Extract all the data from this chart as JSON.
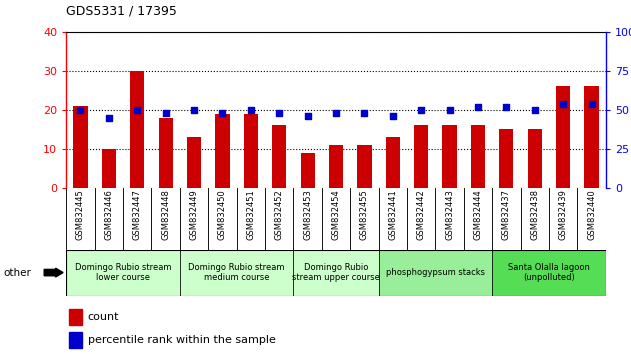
{
  "title": "GDS5331 / 17395",
  "categories": [
    "GSM832445",
    "GSM832446",
    "GSM832447",
    "GSM832448",
    "GSM832449",
    "GSM832450",
    "GSM832451",
    "GSM832452",
    "GSM832453",
    "GSM832454",
    "GSM832455",
    "GSM832441",
    "GSM832442",
    "GSM832443",
    "GSM832444",
    "GSM832437",
    "GSM832438",
    "GSM832439",
    "GSM832440"
  ],
  "counts": [
    21,
    10,
    30,
    18,
    13,
    19,
    19,
    16,
    9,
    11,
    11,
    13,
    16,
    16,
    16,
    15,
    15,
    26,
    26
  ],
  "percentiles": [
    50,
    45,
    50,
    48,
    50,
    48,
    50,
    48,
    46,
    48,
    48,
    46,
    50,
    50,
    52,
    52,
    50,
    54,
    54
  ],
  "bar_color": "#CC0000",
  "dot_color": "#0000CC",
  "ylim_left": [
    0,
    40
  ],
  "ylim_right": [
    0,
    100
  ],
  "yticks_left": [
    0,
    10,
    20,
    30,
    40
  ],
  "yticks_right": [
    0,
    25,
    50,
    75,
    100
  ],
  "groups": [
    {
      "label": "Domingo Rubio stream\nlower course",
      "start": 0,
      "end": 4,
      "color": "#ccffcc"
    },
    {
      "label": "Domingo Rubio stream\nmedium course",
      "start": 4,
      "end": 8,
      "color": "#ccffcc"
    },
    {
      "label": "Domingo Rubio\nstream upper course",
      "start": 8,
      "end": 11,
      "color": "#ccffcc"
    },
    {
      "label": "phosphogypsum stacks",
      "start": 11,
      "end": 15,
      "color": "#99ee99"
    },
    {
      "label": "Santa Olalla lagoon\n(unpolluted)",
      "start": 15,
      "end": 19,
      "color": "#55dd55"
    }
  ],
  "legend_count_label": "count",
  "legend_pct_label": "percentile rank within the sample",
  "other_label": "other",
  "xtick_bg": "#c8c8c8",
  "plot_bg": "#ffffff",
  "border_color": "#000000"
}
